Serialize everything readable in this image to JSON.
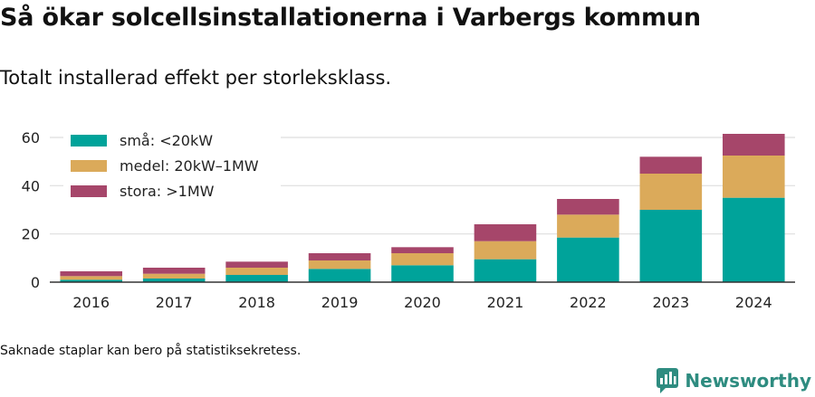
{
  "header": {
    "title": "Så ökar solcellsinstallationerna i Varbergs kommun",
    "subtitle": "Totalt installerad effekt per storleksklass."
  },
  "footer": {
    "note": "Saknade staplar kan bero på statistiksekretess.",
    "brand": "Newsworthy",
    "brand_color": "#2e8c80",
    "brand_icon": "bar-chart-logo-icon"
  },
  "chart_data": {
    "type": "bar",
    "stacked": true,
    "categories": [
      "2016",
      "2017",
      "2018",
      "2019",
      "2020",
      "2021",
      "2022",
      "2023",
      "2024"
    ],
    "series": [
      {
        "name": "små: <20kW",
        "color": "#00a39a",
        "values": [
          1,
          1.5,
          3,
          5.5,
          7,
          9.5,
          18.5,
          30,
          35
        ]
      },
      {
        "name": "medel: 20kW–1MW",
        "color": "#dbaa5a",
        "values": [
          1.5,
          2,
          3,
          3.5,
          5,
          7.5,
          9.5,
          15,
          17.5
        ]
      },
      {
        "name": "stora: >1MW",
        "color": "#a6466a",
        "values": [
          2,
          2.5,
          2.5,
          3,
          2.5,
          7,
          6.5,
          7,
          9
        ]
      }
    ],
    "ylim": [
      0,
      60
    ],
    "yticks": [
      0,
      20,
      40,
      60
    ],
    "grid": true,
    "legend_position": "top-left",
    "xlabel": "",
    "ylabel": ""
  }
}
